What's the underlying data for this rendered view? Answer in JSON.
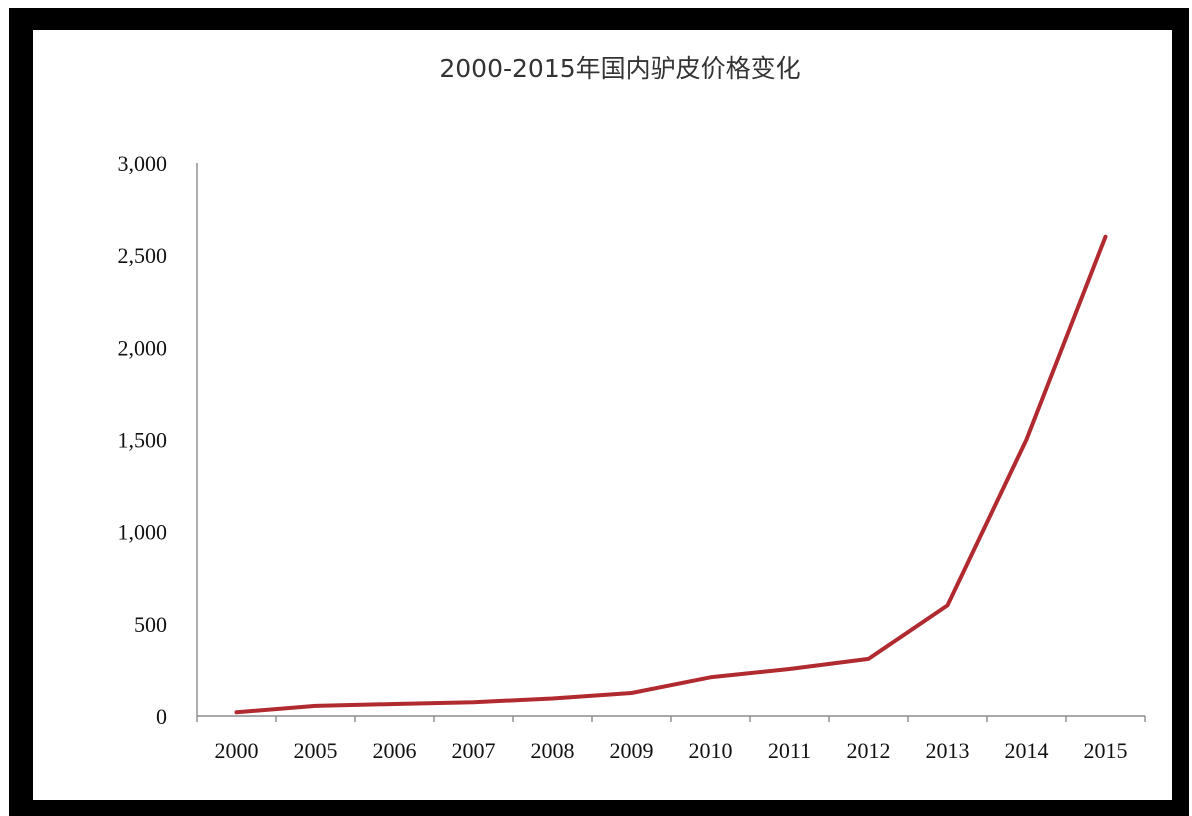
{
  "chart_data": {
    "type": "line",
    "title": "2000-2015年国内驴皮价格变化",
    "xlabel": "",
    "ylabel": "",
    "categories": [
      "2000",
      "2005",
      "2006",
      "2007",
      "2008",
      "2009",
      "2010",
      "2011",
      "2012",
      "2013",
      "2014",
      "2015"
    ],
    "series": [
      {
        "values": [
          20,
          55,
          65,
          75,
          95,
          125,
          210,
          255,
          310,
          600,
          1500,
          2600
        ],
        "color": "#b02a30"
      }
    ],
    "ylim": [
      0,
      3000
    ],
    "yticks": [
      0,
      500,
      1000,
      1500,
      2000,
      2500,
      3000
    ],
    "ytick_labels": [
      "0",
      "500",
      "1,000",
      "1,500",
      "2,000",
      "2,500",
      "3,000"
    ],
    "grid": false,
    "legend": "none"
  }
}
